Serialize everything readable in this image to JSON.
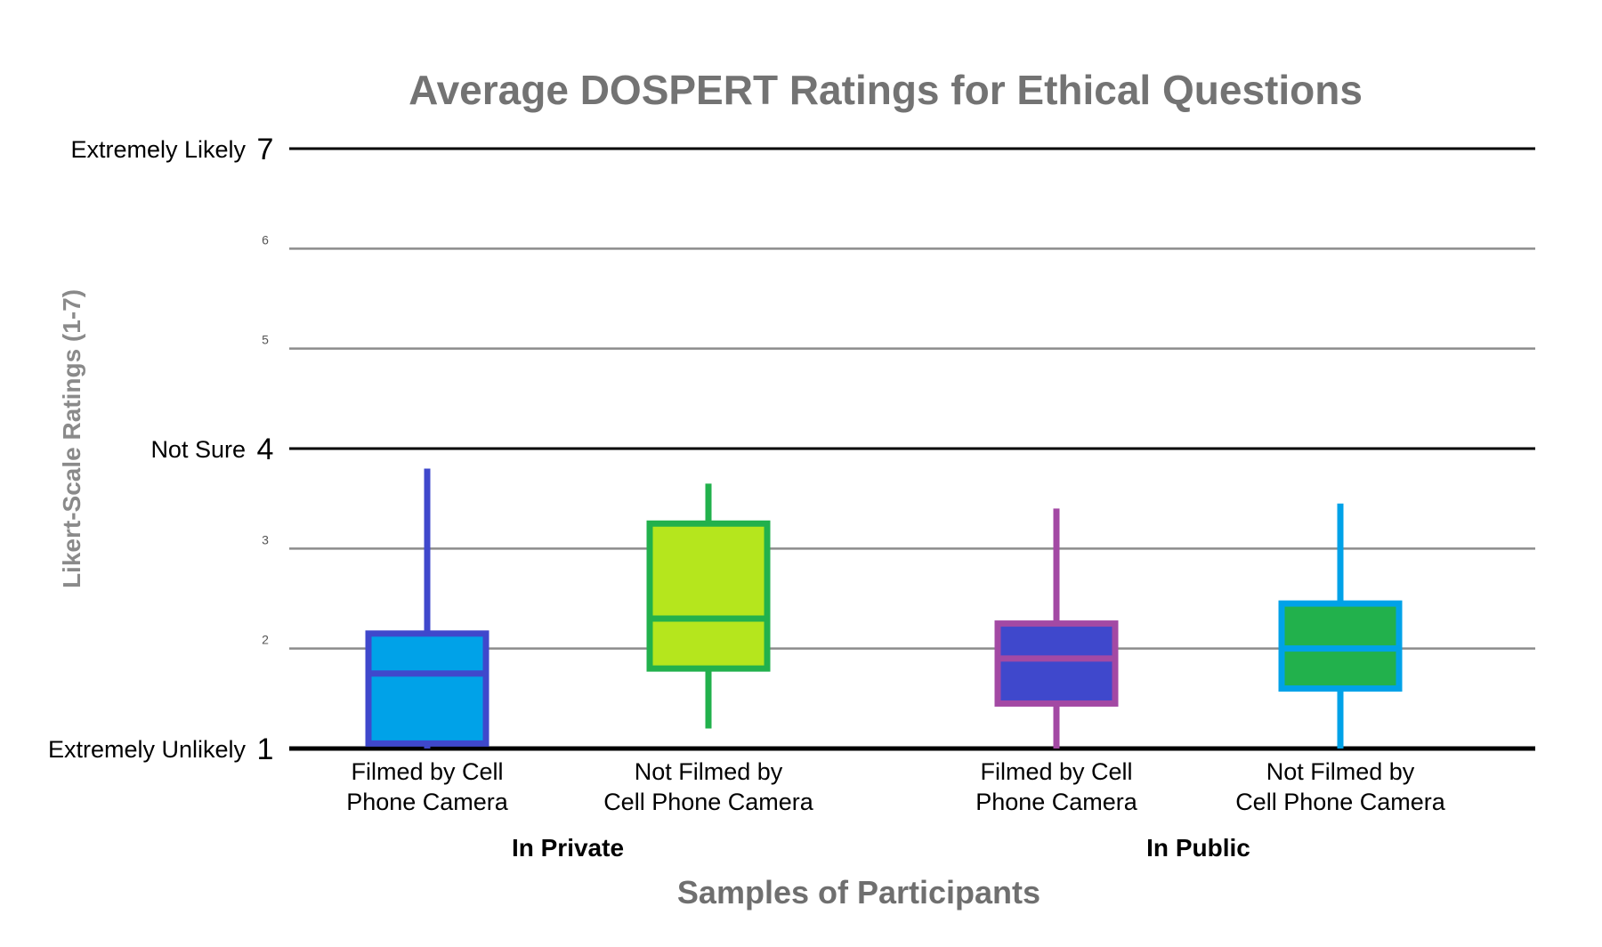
{
  "chart_data": {
    "type": "box",
    "title": "Average DOSPERT Ratings for Ethical Questions",
    "xlabel": "Samples of Participants",
    "ylabel": "Likert-Scale Ratings (1-7)",
    "ylim": [
      1,
      7
    ],
    "grid": true,
    "y_ticks": [
      {
        "value": 7,
        "label": "7",
        "text": "Extremely Likely",
        "major": true
      },
      {
        "value": 6,
        "label": "6",
        "text": "",
        "major": false
      },
      {
        "value": 5,
        "label": "5",
        "text": "",
        "major": false
      },
      {
        "value": 4,
        "label": "4",
        "text": "Not Sure",
        "major": true
      },
      {
        "value": 3,
        "label": "3",
        "text": "",
        "major": false
      },
      {
        "value": 2,
        "label": "2",
        "text": "",
        "major": false
      },
      {
        "value": 1,
        "label": "1",
        "text": "Extremely Unlikely",
        "major": true
      }
    ],
    "groups": [
      {
        "label": "In Private",
        "category_indices": [
          0,
          1
        ]
      },
      {
        "label": "In Public",
        "category_indices": [
          2,
          3
        ]
      }
    ],
    "categories": [
      {
        "label_lines": [
          "Filmed by Cell",
          "Phone Camera"
        ],
        "min": 1.0,
        "q1": 1.05,
        "median": 1.75,
        "q3": 2.15,
        "max": 3.8,
        "fill": "#00a2e8",
        "stroke": "#3f48cc"
      },
      {
        "label_lines": [
          "Not Filmed by",
          "Cell Phone Camera"
        ],
        "min": 1.2,
        "q1": 1.8,
        "median": 2.3,
        "q3": 3.25,
        "max": 3.65,
        "fill": "#b5e61d",
        "stroke": "#22b14c"
      },
      {
        "label_lines": [
          "Filmed by Cell",
          "Phone Camera"
        ],
        "min": 1.0,
        "q1": 1.45,
        "median": 1.9,
        "q3": 2.25,
        "max": 3.4,
        "fill": "#3f48cc",
        "stroke": "#a349a4"
      },
      {
        "label_lines": [
          "Not Filmed by",
          "Cell Phone Camera"
        ],
        "min": 1.0,
        "q1": 1.6,
        "median": 2.0,
        "q3": 2.45,
        "max": 3.45,
        "fill": "#22b14c",
        "stroke": "#00a2e8"
      }
    ]
  }
}
